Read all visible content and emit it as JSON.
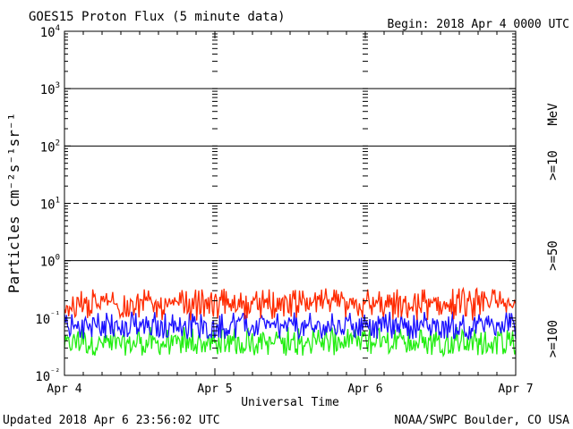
{
  "chart_data": {
    "type": "line",
    "title": "GOES15 Proton Flux (5 minute data)",
    "begin_label": "Begin: 2018 Apr 4 0000 UTC",
    "xlabel": "Universal Time",
    "ylabel": "Particles cm⁻²s⁻¹sr⁻¹",
    "unit_label": "MeV",
    "x_tick_labels": [
      "Apr 4",
      "Apr 5",
      "Apr 6",
      "Apr 7"
    ],
    "xlim_days": [
      0,
      3
    ],
    "y_scale": "log",
    "ylim": [
      0.01,
      10000
    ],
    "y_tick_labels": [
      {
        "base": "10",
        "exp": "4",
        "value": 10000
      },
      {
        "base": "10",
        "exp": "3",
        "value": 1000
      },
      {
        "base": "10",
        "exp": "2",
        "value": 100
      },
      {
        "base": "10",
        "exp": "1",
        "value": 10
      },
      {
        "base": "10",
        "exp": "0",
        "value": 1
      },
      {
        "base": "10",
        "exp": "⁻¹",
        "value": 0.1
      },
      {
        "base": "10",
        "exp": "⁻²",
        "value": 0.01
      }
    ],
    "threshold_lines": [
      {
        "value": 1000,
        "style": "solid"
      },
      {
        "value": 100,
        "style": "solid"
      },
      {
        "value": 10,
        "style": "dashed"
      },
      {
        "value": 1,
        "style": "solid"
      }
    ],
    "series": [
      {
        "name": ">=10",
        "color": "#ff2a00",
        "baseline": 0.16,
        "spread": 0.07,
        "spike_max": 0.33
      },
      {
        "name": ">=50",
        "color": "#1a10ff",
        "baseline": 0.068,
        "spread": 0.025,
        "spike_max": 0.13
      },
      {
        "name": ">=100",
        "color": "#22ee11",
        "baseline": 0.036,
        "spread": 0.014,
        "spike_max": 0.07
      }
    ]
  },
  "footer": {
    "updated": "Updated 2018 Apr  6 23:56:02 UTC",
    "source": "NOAA/SWPC Boulder, CO USA"
  }
}
